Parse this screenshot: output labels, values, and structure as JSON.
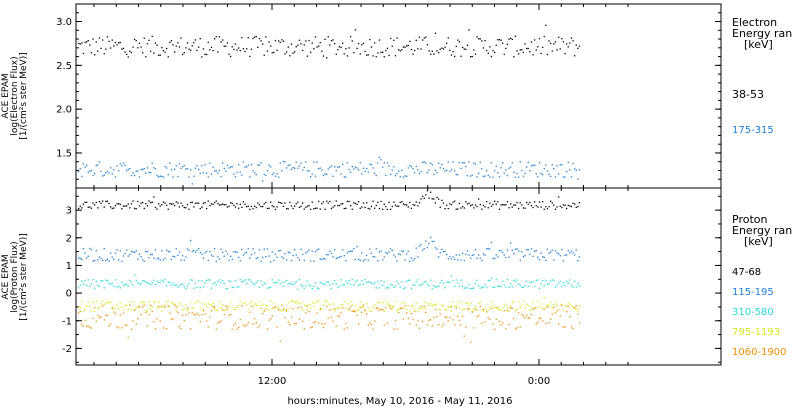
{
  "colors": {
    "black": "#000000",
    "blue": "#1f7fd6",
    "cyan": "#2ad8d8",
    "yellow": "#d6e61e",
    "orange": "#f0900a"
  },
  "x_axis": {
    "title": "hours:minutes, May 10, 2016 - May 11, 2016",
    "tick_labels": [
      "12:00",
      "0:00"
    ]
  },
  "chart_data": [
    {
      "type": "scatter",
      "panel": "electron",
      "ylabel": [
        "ACE EPAM",
        "log(Electron Flux)",
        "[1/(cm²s ster MeV)]"
      ],
      "ylim": [
        1.1,
        3.2
      ],
      "yticks": [
        "1.5",
        "2.0",
        "2.5",
        "3.0"
      ],
      "legend_title": [
        "Electron",
        "Energy ran",
        "[keV]"
      ],
      "series": [
        {
          "name": "38-53",
          "color": "#000000",
          "mean": 2.72,
          "range": [
            2.55,
            2.98
          ]
        },
        {
          "name": "175-315",
          "color": "#1f7fd6",
          "mean": 1.32,
          "range": [
            1.15,
            1.48
          ]
        }
      ]
    },
    {
      "type": "scatter",
      "panel": "proton",
      "ylabel": [
        "ACE EPAM",
        "log(Proton Flux)",
        "[1/(cm²s ster MeV)]"
      ],
      "ylim": [
        -2.6,
        3.8
      ],
      "yticks": [
        "-2",
        "-1",
        "0",
        "1",
        "2",
        "3"
      ],
      "legend_title": [
        "Proton",
        "Energy ran",
        "[keV]"
      ],
      "series": [
        {
          "name": "47-68",
          "color": "#000000",
          "mean": 3.2,
          "range": [
            3.1,
            3.65
          ]
        },
        {
          "name": "115-195",
          "color": "#1f7fd6",
          "mean": 1.4,
          "range": [
            1.1,
            1.95
          ]
        },
        {
          "name": "310-580",
          "color": "#2ad8d8",
          "mean": 0.35,
          "range": [
            0.1,
            0.7
          ]
        },
        {
          "name": "795-1193",
          "color": "#d6e61e",
          "mean": -0.45,
          "range": [
            -0.8,
            -0.1
          ]
        },
        {
          "name": "1060-1900",
          "color": "#f0900a",
          "mean": -0.85,
          "range": [
            -2.0,
            -0.4
          ]
        }
      ]
    }
  ]
}
